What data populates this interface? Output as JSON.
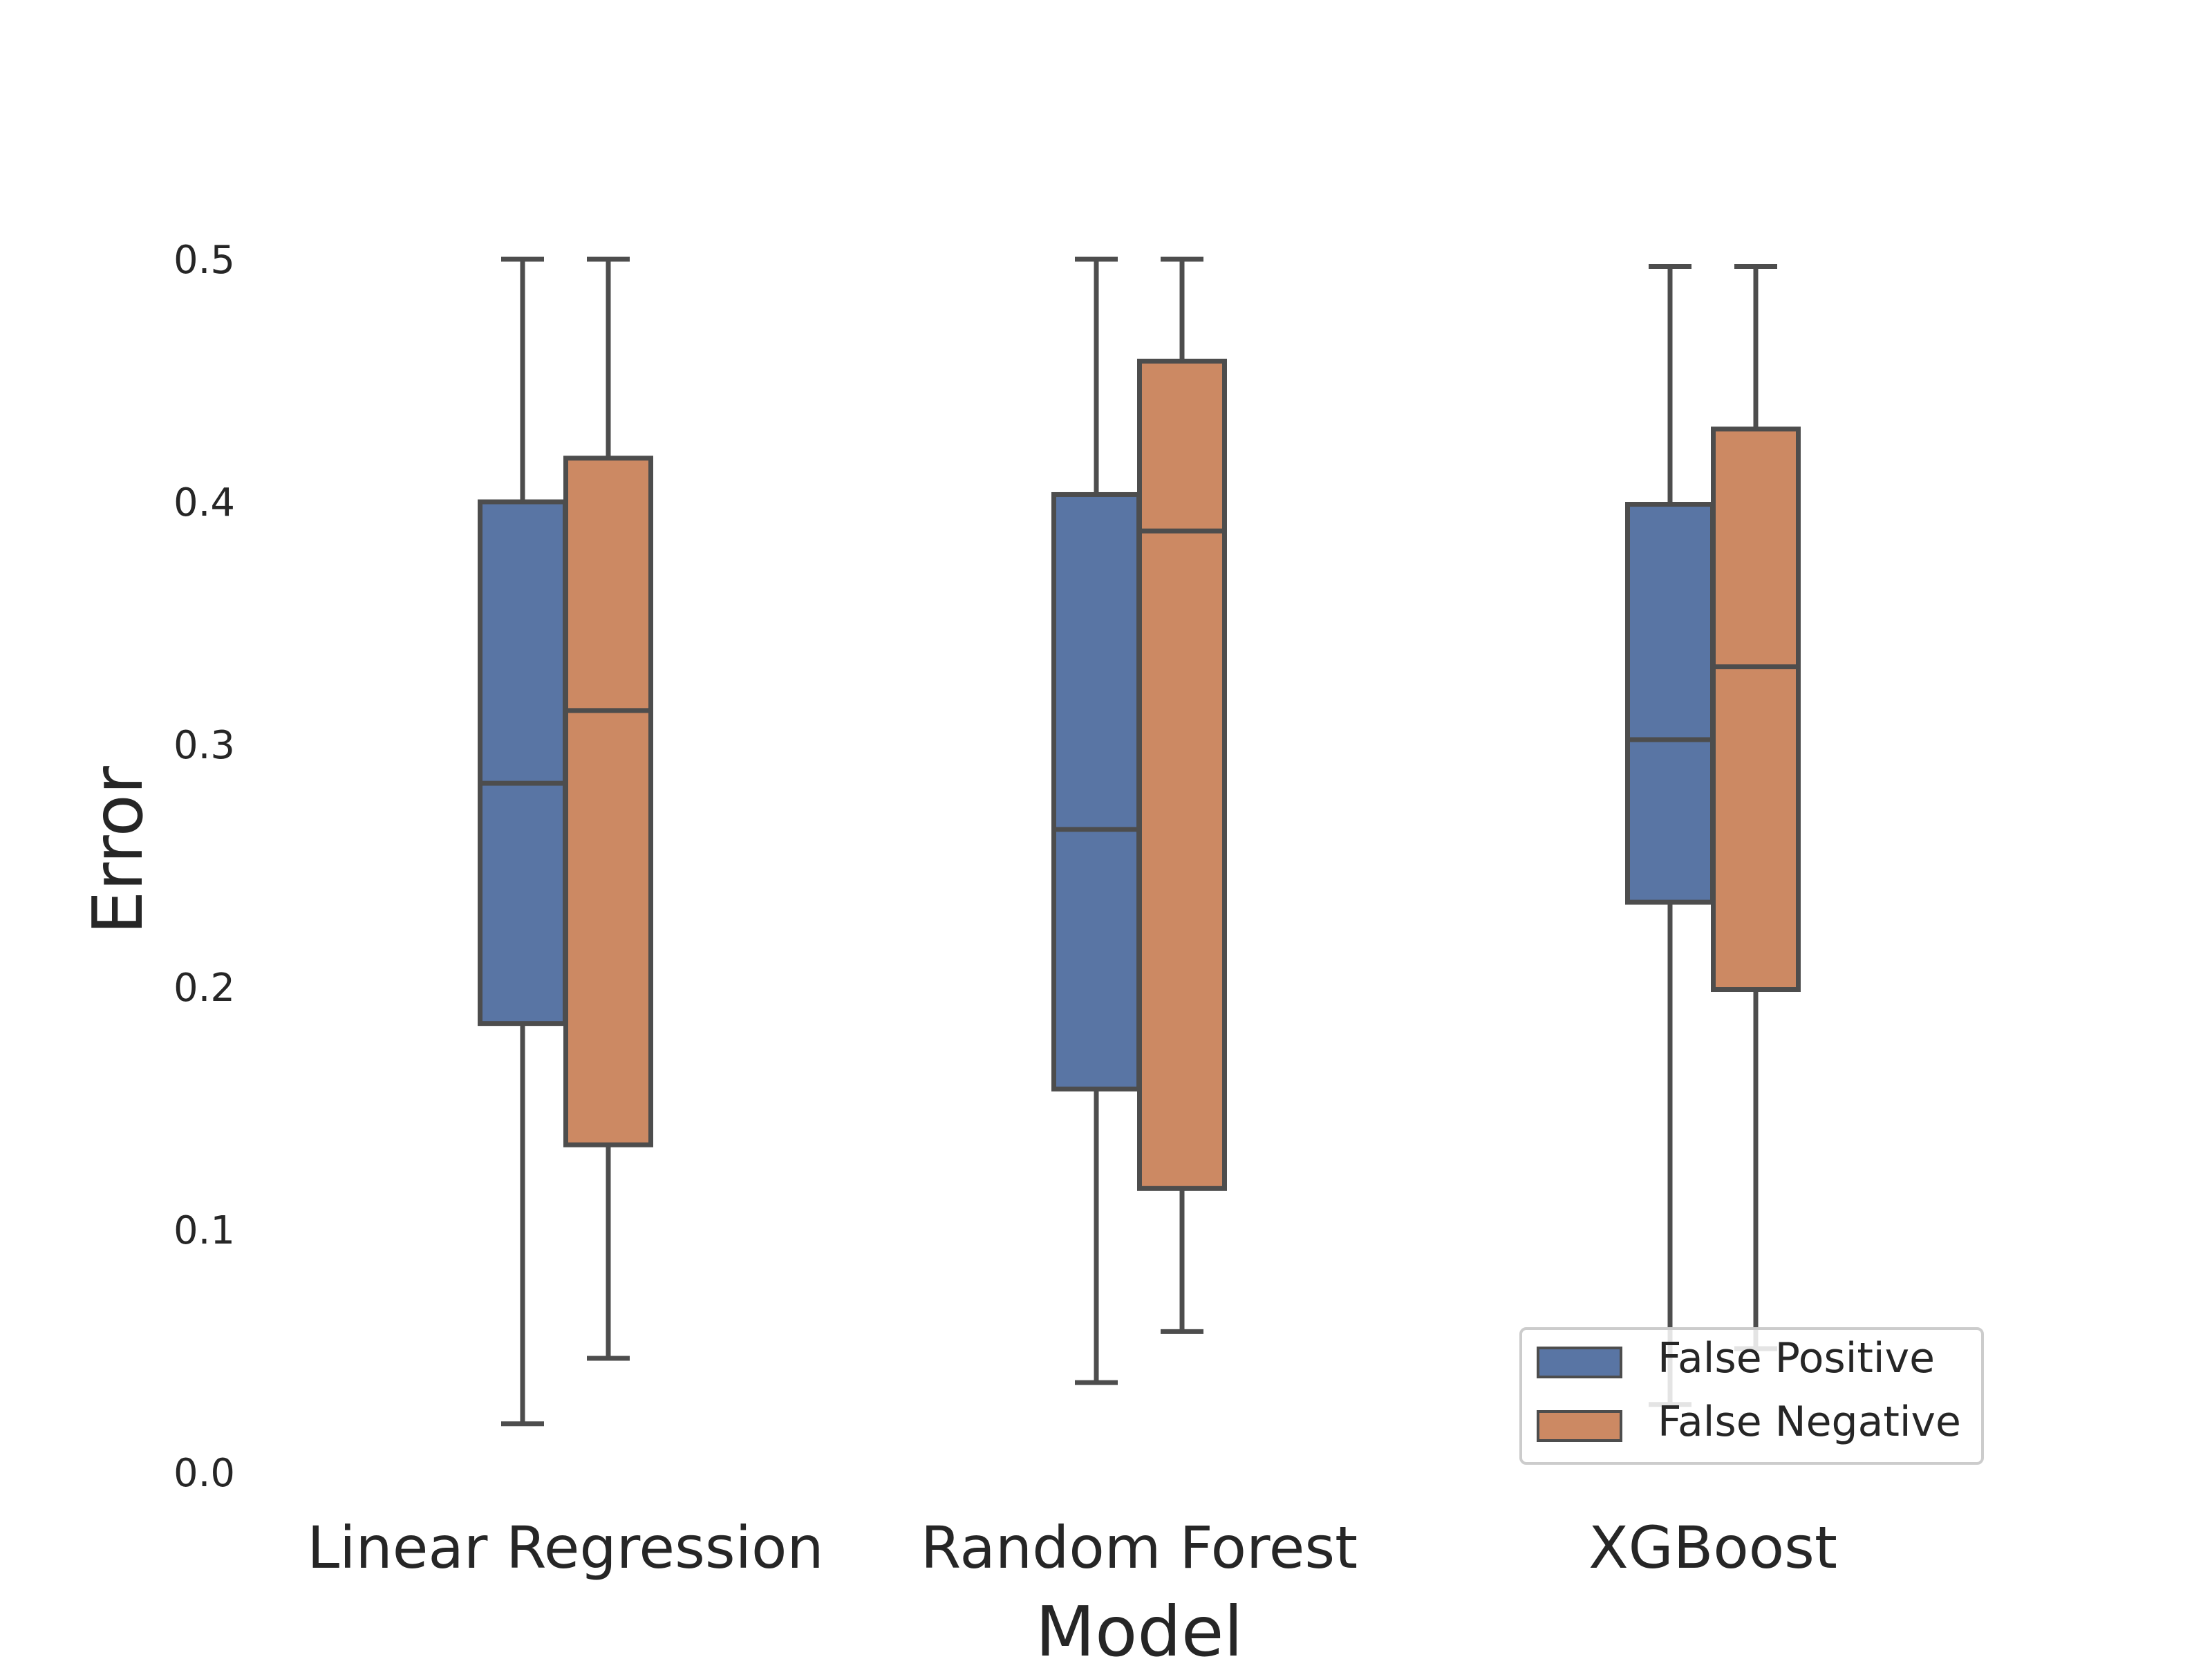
{
  "chart_data": {
    "type": "box",
    "xlabel": "Model",
    "ylabel": "Error",
    "ylim": [
      0.0,
      0.5
    ],
    "yticks": [
      "0.0",
      "0.1",
      "0.2",
      "0.3",
      "0.4",
      "0.5"
    ],
    "grid": false,
    "legend_position": "lower-right",
    "categories": [
      "Linear Regression",
      "Random Forest",
      "XGBoost"
    ],
    "series": [
      {
        "name": "False Positive",
        "color": "#5975a4",
        "boxes": [
          {
            "whislo": 0.02,
            "q1": 0.185,
            "median": 0.284,
            "q3": 0.4,
            "whishi": 0.5
          },
          {
            "whislo": 0.037,
            "q1": 0.158,
            "median": 0.265,
            "q3": 0.403,
            "whishi": 0.5
          },
          {
            "whislo": 0.028,
            "q1": 0.235,
            "median": 0.302,
            "q3": 0.399,
            "whishi": 0.497
          }
        ]
      },
      {
        "name": "False Negative",
        "color": "#cc8963",
        "boxes": [
          {
            "whislo": 0.047,
            "q1": 0.135,
            "median": 0.314,
            "q3": 0.418,
            "whishi": 0.5
          },
          {
            "whislo": 0.058,
            "q1": 0.117,
            "median": 0.388,
            "q3": 0.458,
            "whishi": 0.5
          },
          {
            "whislo": 0.051,
            "q1": 0.199,
            "median": 0.332,
            "q3": 0.43,
            "whishi": 0.497
          }
        ]
      }
    ],
    "line_color": "#4d4d4d"
  }
}
